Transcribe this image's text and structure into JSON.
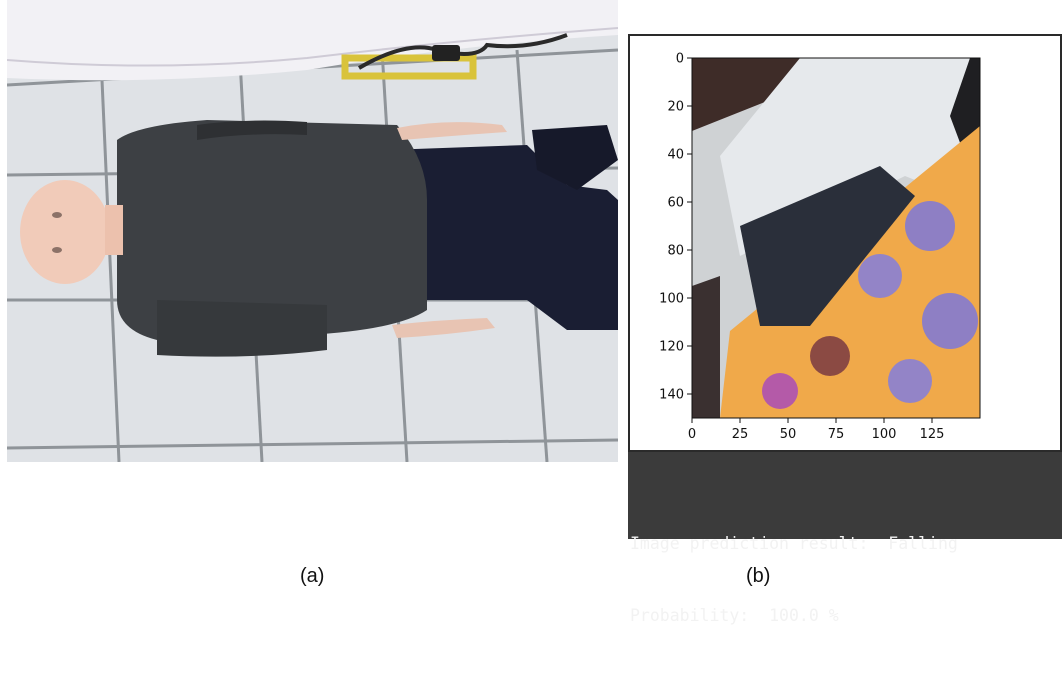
{
  "panel_a": {
    "caption": "(a)",
    "image_description_icon": "mannequin-lying-on-floor-photo"
  },
  "panel_b": {
    "caption": "(b)",
    "plot": {
      "y_ticks": [
        "0",
        "20",
        "40",
        "60",
        "80",
        "100",
        "120",
        "140"
      ],
      "x_ticks": [
        "0",
        "25",
        "50",
        "75",
        "100",
        "125"
      ],
      "xlim": [
        0,
        150
      ],
      "ylim": [
        150,
        0
      ]
    },
    "console": {
      "line1_label": "Image prediction result:",
      "line1_value": "Falling",
      "line2_label": "Probability:",
      "line2_value": "100.0 %"
    }
  }
}
